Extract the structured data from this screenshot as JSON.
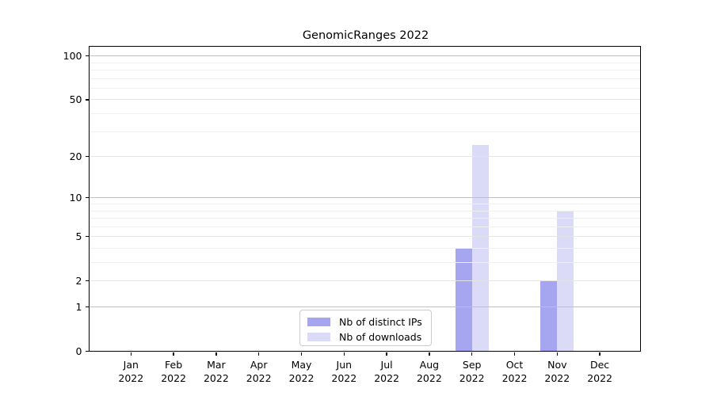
{
  "title": "GenomicRanges 2022",
  "chart_data": {
    "type": "bar",
    "title": "GenomicRanges 2022",
    "categories": [
      "Jan 2022",
      "Feb 2022",
      "Mar 2022",
      "Apr 2022",
      "May 2022",
      "Jun 2022",
      "Jul 2022",
      "Aug 2022",
      "Sep 2022",
      "Oct 2022",
      "Nov 2022",
      "Dec 2022"
    ],
    "x_tick_month_labels": [
      "Jan",
      "Feb",
      "Mar",
      "Apr",
      "May",
      "Jun",
      "Jul",
      "Aug",
      "Sep",
      "Oct",
      "Nov",
      "Dec"
    ],
    "x_tick_year_label": "2022",
    "series": [
      {
        "name": "Nb of distinct IPs",
        "color": "#a5a5f0",
        "values": [
          0,
          0,
          0,
          0,
          0,
          0,
          0,
          0,
          4,
          0,
          2,
          0
        ]
      },
      {
        "name": "Nb of downloads",
        "color": "#dbdbf8",
        "values": [
          0,
          0,
          0,
          0,
          0,
          0,
          0,
          0,
          24,
          0,
          8,
          0
        ]
      }
    ],
    "xlabel": "",
    "ylabel": "",
    "yscale": "log1p",
    "ylim": [
      0,
      115
    ],
    "y_major_ticks": [
      0,
      1,
      2,
      5,
      10,
      20,
      50,
      100
    ],
    "y_tick_labels": [
      "0",
      "1",
      "2",
      "5",
      "10",
      "20",
      "50",
      "100"
    ],
    "y_decade_gridlines": [
      1,
      10,
      100
    ],
    "y_labeled_gridlines": [
      2,
      5,
      20,
      50
    ],
    "y_minor_gridlines": [
      3,
      4,
      6,
      7,
      8,
      9,
      30,
      40,
      60,
      70,
      80,
      90
    ],
    "grid": true,
    "legend_position": "lower center",
    "legend_entries": [
      "Nb of distinct IPs",
      "Nb of downloads"
    ]
  },
  "colors": {
    "background": "#ffffff",
    "frame": "#000000",
    "text": "#000000",
    "grid_decade": "#c0c0c0",
    "grid_labeled": "#e4e4e4",
    "grid_minor": "#f0f0f0",
    "legend_border": "#cccccc",
    "bar_distinct_ips": "#a5a5f0",
    "bar_downloads": "#dbdbf8"
  }
}
